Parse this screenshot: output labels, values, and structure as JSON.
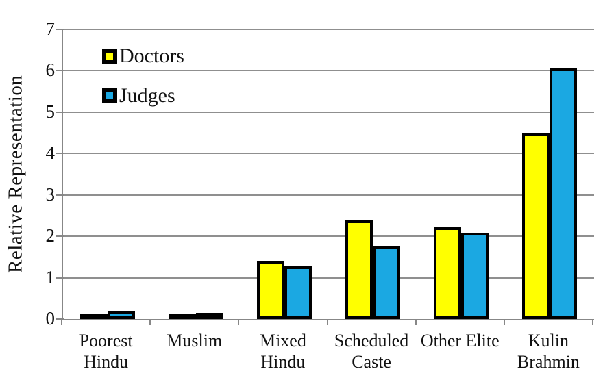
{
  "chart_data": {
    "type": "bar",
    "title": "",
    "xlabel": "",
    "ylabel": "Relative Representation",
    "ylim": [
      0,
      7
    ],
    "yticks": [
      0,
      1,
      2,
      3,
      4,
      5,
      6,
      7
    ],
    "grid": true,
    "legend_position": "top-left",
    "categories": [
      "Poorest Hindu",
      "Muslim",
      "Mixed Hindu",
      "Scheduled Caste",
      "Other Elite",
      "Kulin Brahmin"
    ],
    "category_label_lines": [
      [
        "Poorest",
        "Hindu"
      ],
      [
        "Muslim"
      ],
      [
        "Mixed",
        "Hindu"
      ],
      [
        "Scheduled",
        "Caste"
      ],
      [
        "Other Elite"
      ],
      [
        "Kulin",
        "Brahmin"
      ]
    ],
    "series": [
      {
        "name": "Doctors",
        "color": "#FFFF00",
        "values": [
          0.08,
          0.13,
          1.41,
          2.38,
          2.22,
          4.48
        ]
      },
      {
        "name": "Judges",
        "color": "#1BA8E2",
        "values": [
          0.19,
          0.15,
          1.28,
          1.76,
          2.08,
          6.08
        ]
      }
    ],
    "bar_border_color": "#000000",
    "axis_color": "#878787",
    "gridline_color": "#8f8f8f"
  }
}
